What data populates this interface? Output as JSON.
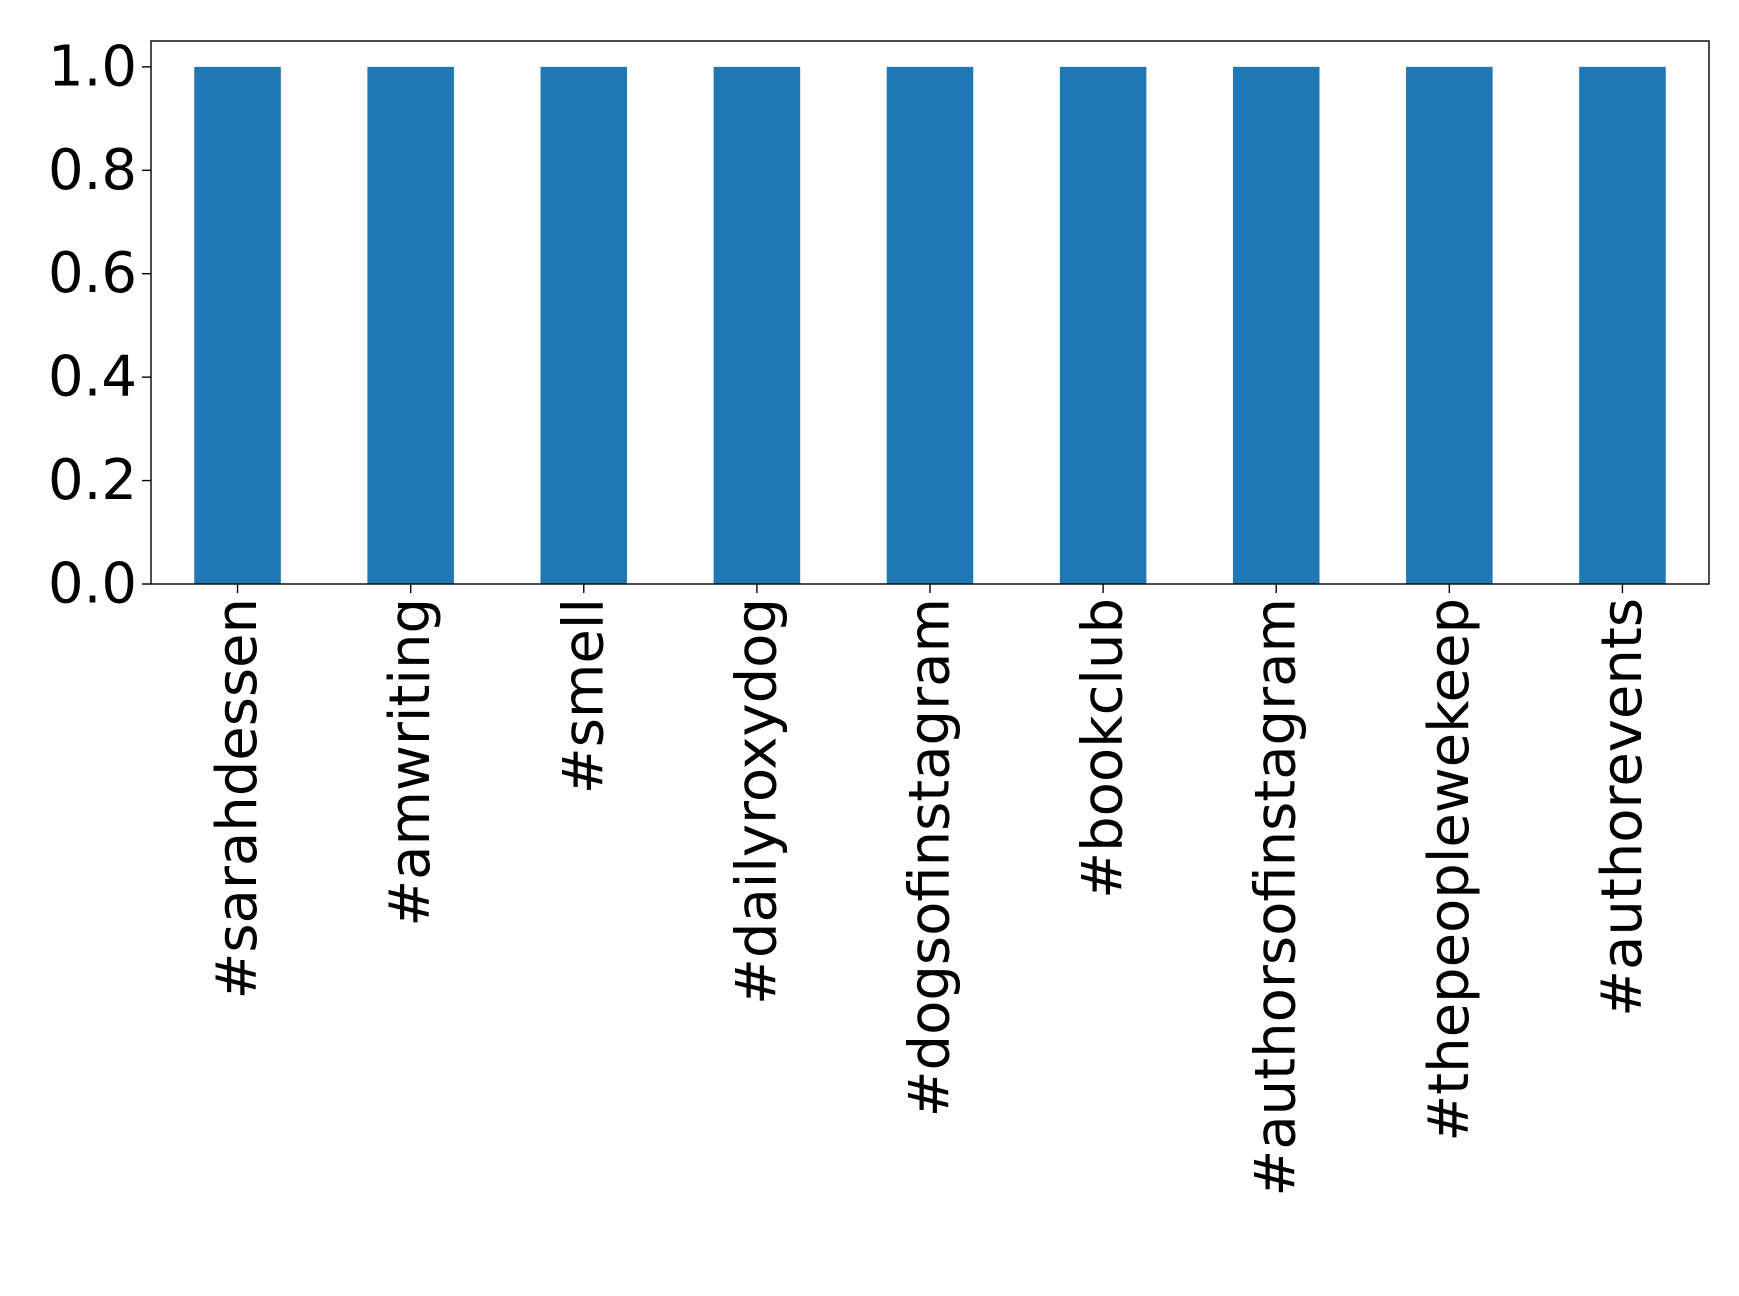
{
  "chart_data": {
    "type": "bar",
    "categories": [
      "#sarahdessen",
      "#amwriting",
      "#smell",
      "#dailyroxydog",
      "#dogsofinstagram",
      "#bookclub",
      "#authorsofinstagram",
      "#thepeoplewekeep",
      "#authorevents"
    ],
    "values": [
      1.0,
      1.0,
      1.0,
      1.0,
      1.0,
      1.0,
      1.0,
      1.0,
      1.0
    ],
    "ylim": [
      0,
      1.05
    ],
    "yticks": [
      "0.0",
      "0.2",
      "0.4",
      "0.6",
      "0.8",
      "1.0"
    ],
    "title": "",
    "xlabel": "",
    "ylabel": "",
    "grid": false,
    "colors": {
      "bar": "#1f77b4",
      "axis": "#000000"
    }
  }
}
